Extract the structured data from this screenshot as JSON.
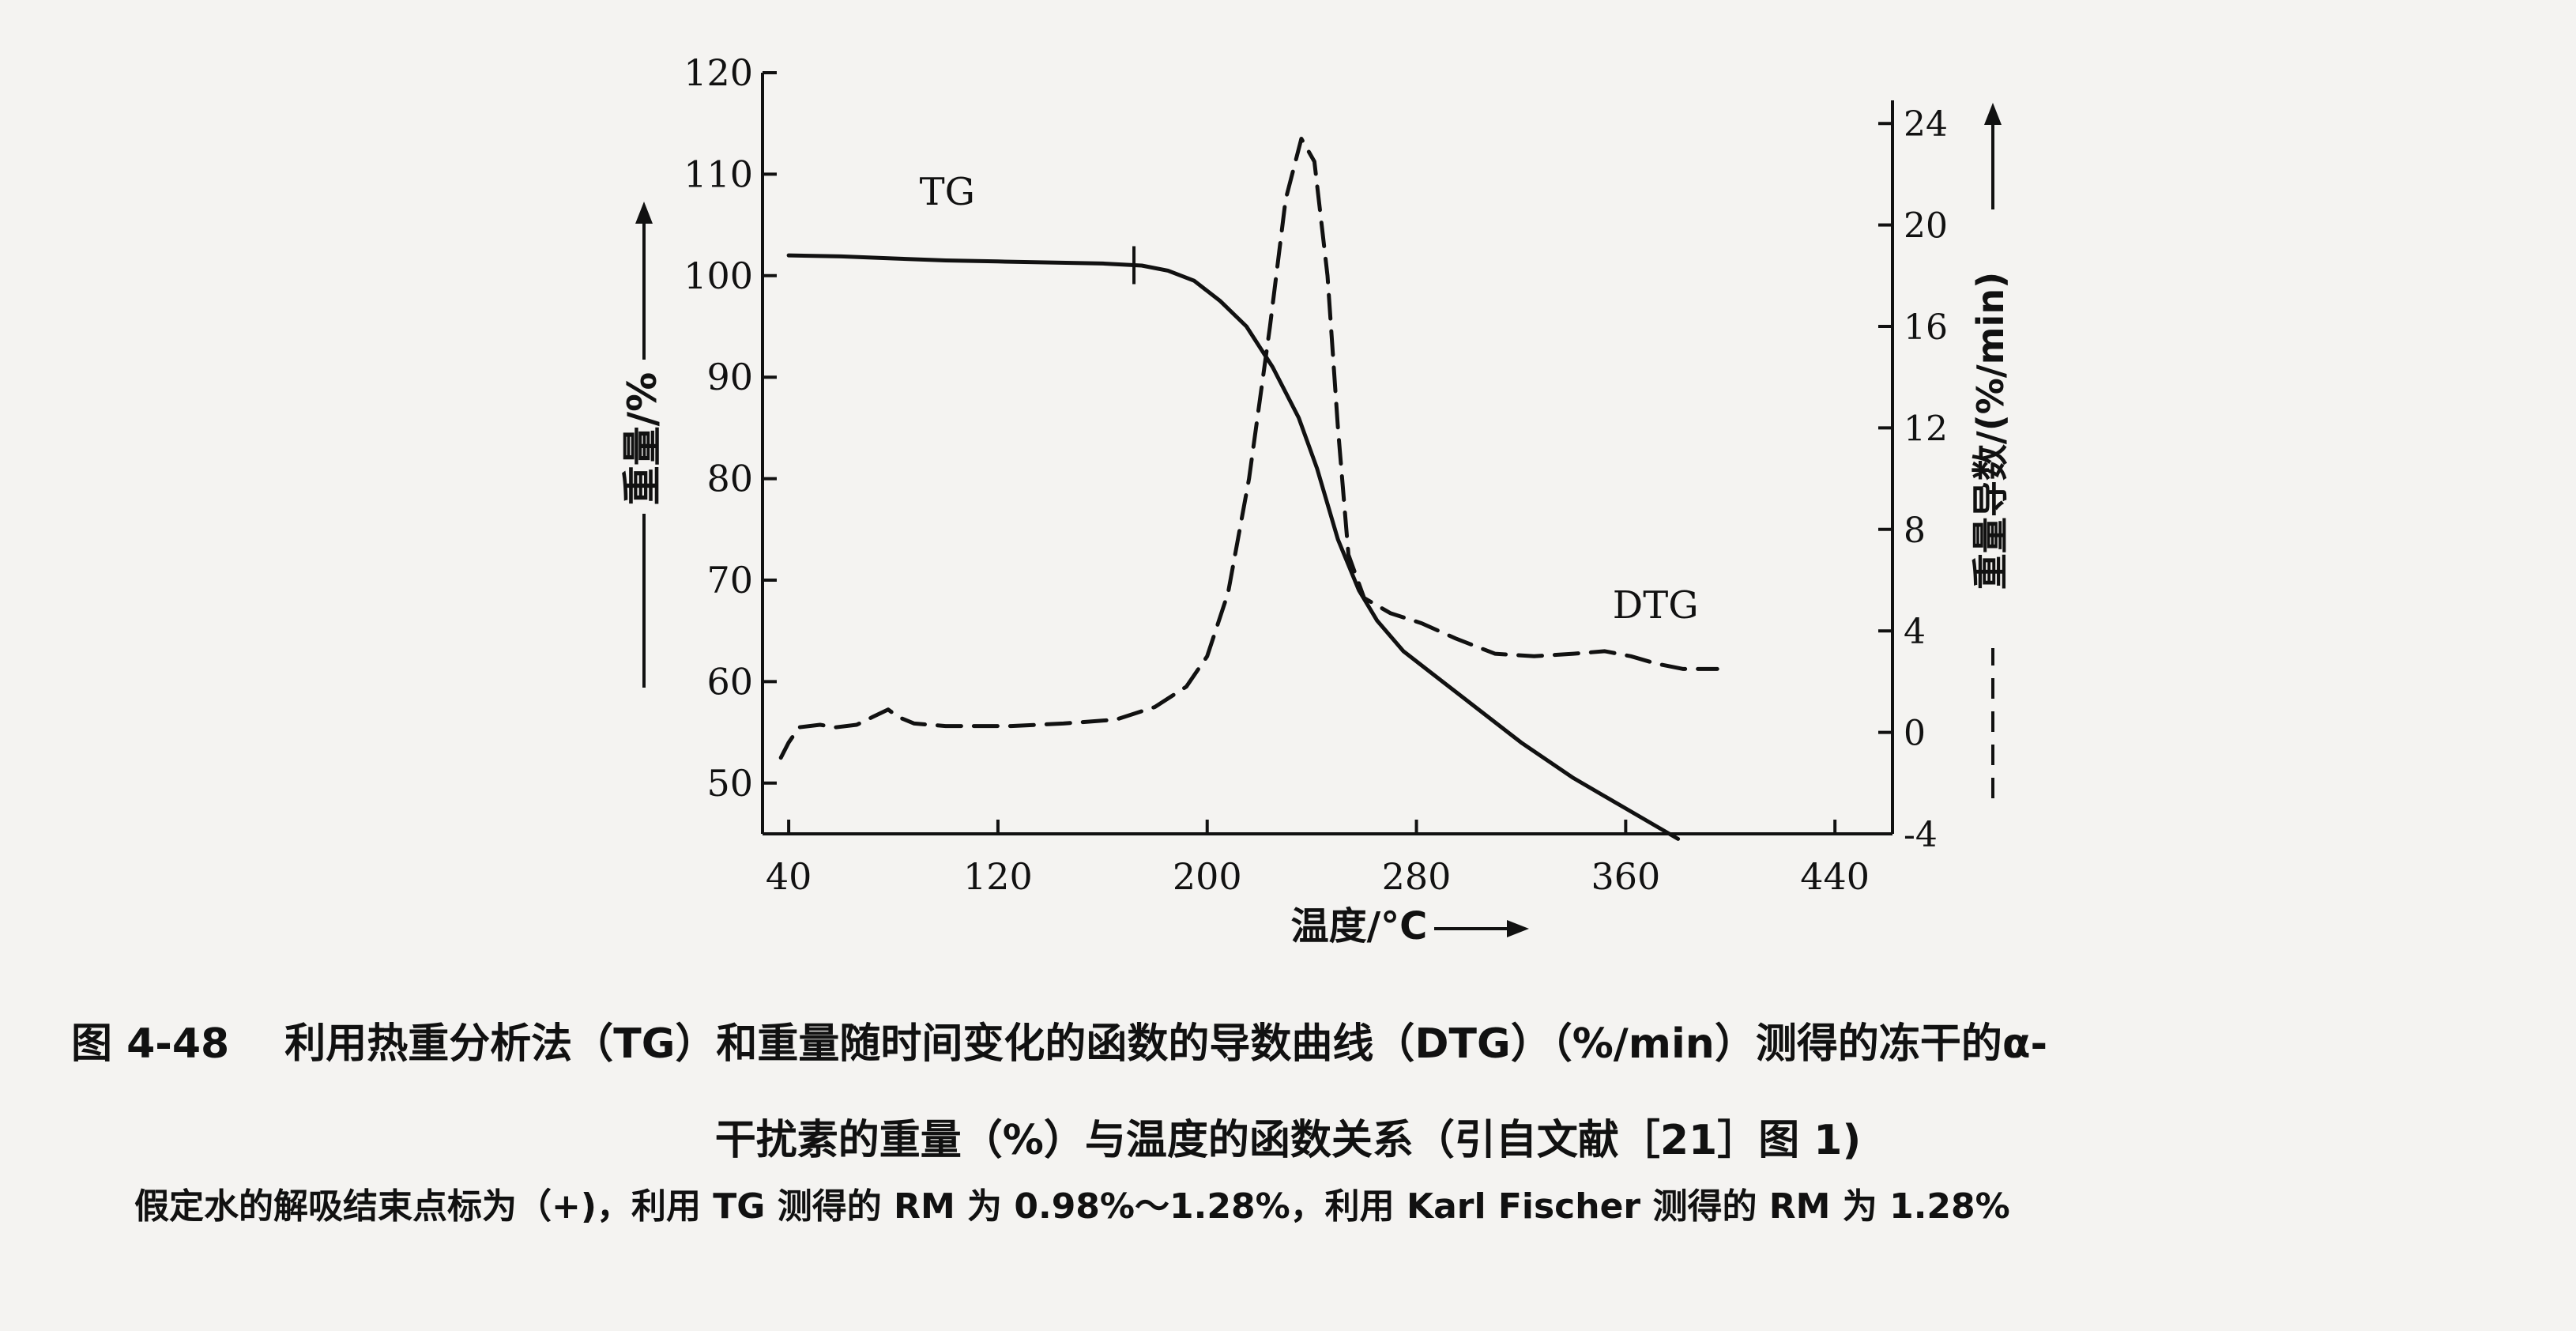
{
  "chart_data": {
    "type": "line",
    "xlabel": "温度/°C",
    "ylabel_left": "重量/%",
    "ylabel_right": "重量导数/(%/min)",
    "xlim": [
      30,
      462
    ],
    "ylim_left": [
      45,
      120
    ],
    "ylim_right": [
      -4,
      26
    ],
    "x_ticks": [
      40,
      120,
      200,
      280,
      360,
      440
    ],
    "y_left_ticks": [
      50,
      60,
      70,
      80,
      90,
      100,
      110,
      120
    ],
    "y_right_ticks": [
      -4,
      0,
      4,
      8,
      12,
      16,
      20,
      24
    ],
    "grid": false,
    "series": [
      {
        "name": "TG",
        "axis": "left",
        "style": "solid",
        "points": [
          [
            40,
            102
          ],
          [
            60,
            101.9
          ],
          [
            80,
            101.7
          ],
          [
            100,
            101.5
          ],
          [
            120,
            101.4
          ],
          [
            140,
            101.3
          ],
          [
            160,
            101.2
          ],
          [
            175,
            101
          ],
          [
            185,
            100.5
          ],
          [
            195,
            99.5
          ],
          [
            205,
            97.5
          ],
          [
            215,
            95
          ],
          [
            225,
            91
          ],
          [
            235,
            86
          ],
          [
            242,
            81
          ],
          [
            250,
            74
          ],
          [
            258,
            69
          ],
          [
            265,
            66
          ],
          [
            275,
            63
          ],
          [
            285,
            61
          ],
          [
            300,
            58
          ],
          [
            320,
            54
          ],
          [
            340,
            50.5
          ],
          [
            360,
            47.5
          ],
          [
            380,
            44.5
          ]
        ]
      },
      {
        "name": "DTG",
        "axis": "right",
        "style": "dashed",
        "points": [
          [
            37,
            -1
          ],
          [
            40,
            -0.4
          ],
          [
            44,
            0.2
          ],
          [
            52,
            0.3
          ],
          [
            58,
            0.2
          ],
          [
            66,
            0.3
          ],
          [
            72,
            0.6
          ],
          [
            78,
            0.9
          ],
          [
            82,
            0.6
          ],
          [
            88,
            0.35
          ],
          [
            100,
            0.25
          ],
          [
            125,
            0.25
          ],
          [
            145,
            0.35
          ],
          [
            165,
            0.5
          ],
          [
            180,
            1
          ],
          [
            192,
            1.8
          ],
          [
            200,
            3
          ],
          [
            208,
            5.5
          ],
          [
            216,
            10
          ],
          [
            224,
            16
          ],
          [
            230,
            21
          ],
          [
            236,
            23.4
          ],
          [
            241,
            22.5
          ],
          [
            246,
            18
          ],
          [
            250,
            12
          ],
          [
            254,
            7
          ],
          [
            260,
            5.3
          ],
          [
            270,
            4.7
          ],
          [
            282,
            4.3
          ],
          [
            295,
            3.7
          ],
          [
            310,
            3.1
          ],
          [
            325,
            3
          ],
          [
            340,
            3.1
          ],
          [
            352,
            3.2
          ],
          [
            362,
            3
          ],
          [
            372,
            2.7
          ],
          [
            382,
            2.5
          ],
          [
            395,
            2.5
          ]
        ]
      }
    ],
    "markers": [
      {
        "series": "TG",
        "x": 172,
        "symbol": "+"
      }
    ],
    "annotations": [
      {
        "text": "TG",
        "x": 90,
        "y": 107,
        "axis": "left"
      },
      {
        "text": "DTG",
        "x": 355,
        "y": 4.5,
        "axis": "right"
      }
    ]
  },
  "caption": {
    "figure_number": "图 4-48",
    "line1": "利用热重分析法（TG）和重量随时间变化的函数的导数曲线（DTG）（%/min）测得的冻干的α-",
    "line2": "干扰素的重量（%）与温度的函数关系（引自文献［21］图 1)",
    "line3": "假定水的解吸结束点标为（+)，利用 TG 测得的 RM 为 0.98%～1.28%，利用 Karl Fischer 测得的 RM 为 1.28%"
  }
}
